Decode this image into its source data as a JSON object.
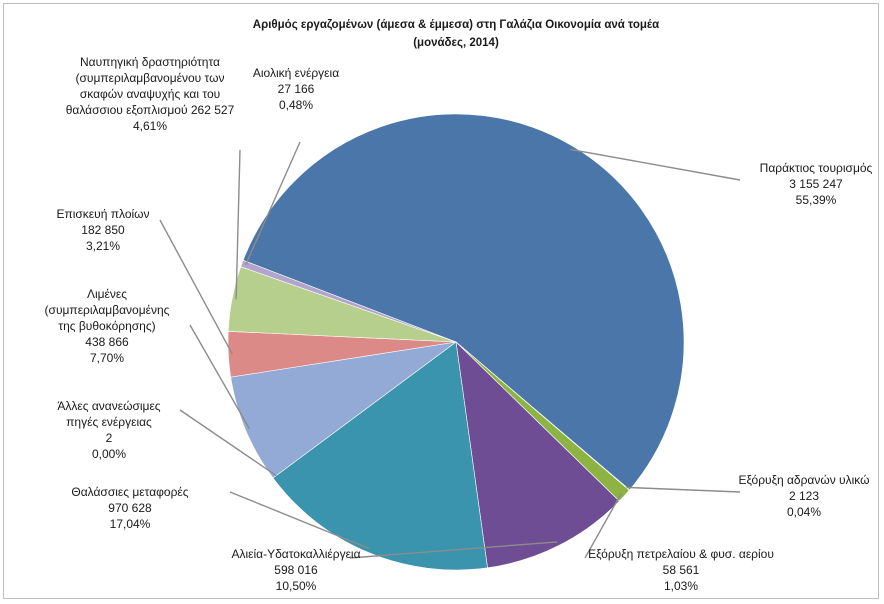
{
  "chart_data": {
    "type": "pie",
    "title": "Αριθμός εργαζομένων (άμεσα & έμμεσα) στη Γαλάζια Οικονομία ανά τομέα",
    "subtitle": "(μονάδες, 2014)",
    "slices": [
      {
        "lines": [
          "Παράκτιος τουρισμός"
        ],
        "value_label": "3 155 247",
        "pct_label": "55,39%",
        "value": 3155247,
        "percent": 55.39,
        "color": "#4a76aa"
      },
      {
        "lines": [
          "Εξόρυξη αδρανών υλικώ"
        ],
        "value_label": "2 123",
        "pct_label": "0,04%",
        "value": 2123,
        "percent": 0.04,
        "color": "#c0504d"
      },
      {
        "lines": [
          "Εξόρυξη πετρελαίου & φυσ. αερίου"
        ],
        "value_label": "58 561",
        "pct_label": "1,03%",
        "value": 58561,
        "percent": 1.03,
        "color": "#8db443"
      },
      {
        "lines": [
          "Αλιεία-Υδατοκαλλιέργεια"
        ],
        "value_label": "598 016",
        "pct_label": "10,50%",
        "value": 598016,
        "percent": 10.5,
        "color": "#6e4d94"
      },
      {
        "lines": [
          "Θαλάσσιες μεταφορές"
        ],
        "value_label": "970 628",
        "pct_label": "17,04%",
        "value": 970628,
        "percent": 17.04,
        "color": "#3a94ad"
      },
      {
        "lines": [
          "Άλλες ανανεώσιμες",
          "πηγές ενέργειας"
        ],
        "value_label": "2",
        "pct_label": "0,00%",
        "value": 2,
        "percent": 0.0,
        "color": "#e7873a"
      },
      {
        "lines": [
          "Λιμένες",
          "(συμπεριλαμβανομένης",
          "της βυθοκόρησης)"
        ],
        "value_label": "438 866",
        "pct_label": "7,70%",
        "value": 438866,
        "percent": 7.7,
        "color": "#93a9d6"
      },
      {
        "lines": [
          "Επισκευή πλοίων"
        ],
        "value_label": "182 850",
        "pct_label": "3,21%",
        "value": 182850,
        "percent": 3.21,
        "color": "#dc8a87"
      },
      {
        "lines": [
          "Ναυπηγική δραστηριότητα",
          "(συμπεριλαμβανομένου των",
          "σκαφών αναψυχής και του",
          "θαλάσσιου εξοπλισμού 262 527"
        ],
        "value_label": "",
        "pct_label": "4,61%",
        "value": 262527,
        "percent": 4.61,
        "color": "#b7cf8c"
      },
      {
        "lines": [
          "Αιολική ενέργεια"
        ],
        "value_label": "27 166",
        "pct_label": "0,48%",
        "value": 27166,
        "percent": 0.48,
        "color": "#b2a4cc"
      }
    ]
  }
}
